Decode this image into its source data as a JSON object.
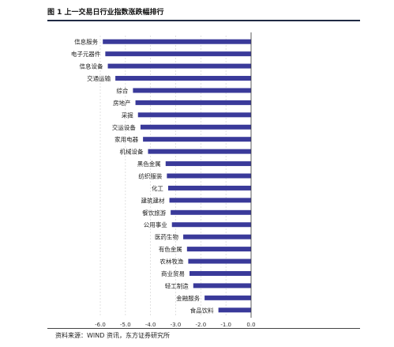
{
  "figure_title": "图 1  上一交易日行业指数涨跌幅排行",
  "source_note": "资料来源：WIND 资讯，东方证券研究所",
  "bar_color": "#3a3a9a",
  "chart_data": {
    "type": "bar",
    "orientation": "horizontal",
    "title": "",
    "xlabel": "",
    "ylabel": "",
    "categories": [
      "信息服务",
      "电子元器件",
      "信息设备",
      "交通运输",
      "综合",
      "房地产",
      "采掘",
      "交运设备",
      "家用电器",
      "机械设备",
      "黑色金属",
      "纺织服装",
      "化工",
      "建筑建材",
      "餐饮旅游",
      "公用事业",
      "医药生物",
      "有色金属",
      "农林牧渔",
      "商业贸易",
      "轻工制造",
      "金融服务",
      "食品饮料"
    ],
    "values": [
      -5.9,
      -5.8,
      -5.7,
      -5.4,
      -4.7,
      -4.6,
      -4.5,
      -4.4,
      -4.3,
      -4.1,
      -3.4,
      -3.35,
      -3.3,
      -3.25,
      -3.2,
      -3.15,
      -2.7,
      -2.55,
      -2.5,
      -2.45,
      -2.3,
      -1.85,
      -1.3
    ],
    "xlim": [
      -6.0,
      0.0
    ],
    "xticks": [
      -6.0,
      -5.0,
      -4.0,
      -3.0,
      -2.0,
      -1.0,
      0.0
    ],
    "xtick_labels": [
      "-6.0",
      "-5.0",
      "-4.0",
      "-3.0",
      "-2.0",
      "-1.0",
      "0.0"
    ],
    "grid": true
  }
}
